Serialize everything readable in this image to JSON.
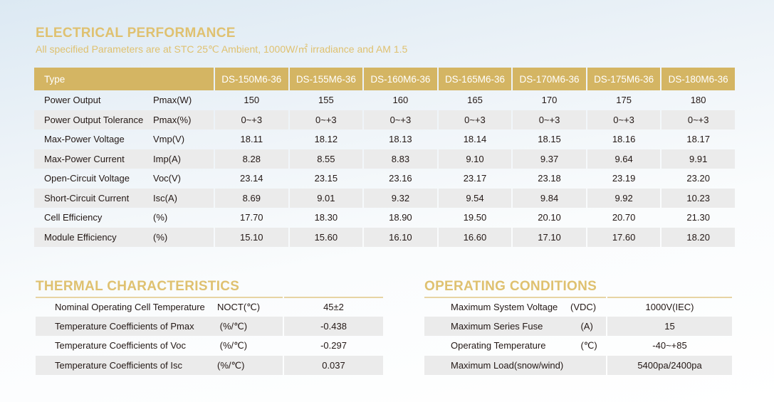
{
  "electrical": {
    "title": "ELECTRICAL PERFORMANCE",
    "subtitle": "All specified Parameters are at STC 25℃ Ambient, 1000W/㎡ irradiance and AM 1.5",
    "type_label": "Type",
    "models": [
      "DS-150M6-36",
      "DS-155M6-36",
      "DS-160M6-36",
      "DS-165M6-36",
      "DS-170M6-36",
      "DS-175M6-36",
      "DS-180M6-36"
    ],
    "rows": [
      {
        "name": "Power Output",
        "unit": "Pmax(W)",
        "values": [
          "150",
          "155",
          "160",
          "165",
          "170",
          "175",
          "180"
        ]
      },
      {
        "name": "Power Output Tolerance",
        "unit": "Pmax(%)",
        "values": [
          "0~+3",
          "0~+3",
          "0~+3",
          "0~+3",
          "0~+3",
          "0~+3",
          "0~+3"
        ]
      },
      {
        "name": "Max-Power Voltage",
        "unit": "Vmp(V)",
        "values": [
          "18.11",
          "18.12",
          "18.13",
          "18.14",
          "18.15",
          "18.16",
          "18.17"
        ]
      },
      {
        "name": "Max-Power Current",
        "unit": "Imp(A)",
        "values": [
          "8.28",
          "8.55",
          "8.83",
          "9.10",
          "9.37",
          "9.64",
          "9.91"
        ]
      },
      {
        "name": "Open-Circuit Voltage",
        "unit": "Voc(V)",
        "values": [
          "23.14",
          "23.15",
          "23.16",
          "23.17",
          "23.18",
          "23.19",
          "23.20"
        ]
      },
      {
        "name": "Short-Circuit Current",
        "unit": "Isc(A)",
        "values": [
          "8.69",
          "9.01",
          "9.32",
          "9.54",
          "9.84",
          "9.92",
          "10.23"
        ]
      },
      {
        "name": "Cell Efficiency",
        "unit": " (%)",
        "values": [
          "17.70",
          "18.30",
          "18.90",
          "19.50",
          "20.10",
          "20.70",
          "21.30"
        ]
      },
      {
        "name": "Module Efficiency",
        "unit": " (%)",
        "values": [
          "15.10",
          "15.60",
          "16.10",
          "16.60",
          "17.10",
          "17.60",
          "18.20"
        ]
      }
    ]
  },
  "thermal": {
    "title": "THERMAL CHARACTERISTICS",
    "rows": [
      {
        "name": "Nominal Operating Cell Temperature",
        "unit": "NOCT(℃)",
        "value": "45±2"
      },
      {
        "name": "Temperature Coefficients of Pmax",
        "unit": " (%/℃)",
        "value": "-0.438"
      },
      {
        "name": "Temperature Coefficients of Voc",
        "unit": " (%/℃)",
        "value": "-0.297"
      },
      {
        "name": "Temperature Coefficients of Isc",
        "unit": "(%/℃)",
        "value": "0.037"
      }
    ]
  },
  "operating": {
    "title": "OPERATING CONDITIONS",
    "rows": [
      {
        "name": "Maximum System Voltage",
        "unit": "(VDC)",
        "value": "1000V(IEC)"
      },
      {
        "name": "Maximum Series Fuse",
        "unit": "    (A)",
        "value": "15"
      },
      {
        "name": "Operating Temperature",
        "unit": "    (℃)",
        "value": "-40~+85"
      },
      {
        "name": "Maximum Load(snow/wind)",
        "unit": "",
        "value": "5400pa/2400pa"
      }
    ]
  }
}
